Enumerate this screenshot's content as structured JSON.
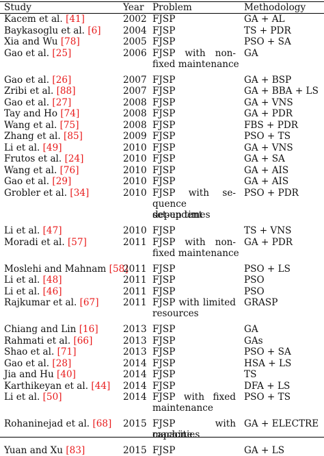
{
  "table": {
    "headers": {
      "study": "Study",
      "year": "Year",
      "problem": "Problem",
      "methodology": "Methodology"
    },
    "rows": [
      {
        "study": "Kacem et al. ",
        "ref": "[41]",
        "year": "2002",
        "problem": [
          "FJSP"
        ],
        "method": "GA + AL"
      },
      {
        "study": "Baykasoglu et al. ",
        "ref": "[6]",
        "year": "2004",
        "problem": [
          "FJSP"
        ],
        "method": "TS + PDR"
      },
      {
        "study": "Xia and Wu ",
        "ref": "[78]",
        "year": "2005",
        "problem": [
          "FJSP"
        ],
        "method": "PSO + SA"
      },
      {
        "study": "Gao et al. ",
        "ref": "[25]",
        "year": "2006",
        "problem": [
          "FJSP with non-",
          "fixed maintenance"
        ],
        "method": "GA"
      },
      {
        "study": "Gao et al. ",
        "ref": "[26]",
        "year": "2007",
        "problem": [
          "FJSP"
        ],
        "method": "GA + BSP"
      },
      {
        "study": "Zribi et al. ",
        "ref": "[88]",
        "year": "2007",
        "problem": [
          "FJSP"
        ],
        "method": "GA + BBA + LS"
      },
      {
        "study": "Gao et al. ",
        "ref": "[27]",
        "year": "2008",
        "problem": [
          "FJSP"
        ],
        "method": "GA + VNS"
      },
      {
        "study": "Tay and Ho ",
        "ref": "[74]",
        "year": "2008",
        "problem": [
          "FJSP"
        ],
        "method": "GA + PDR"
      },
      {
        "study": "Wang et al. ",
        "ref": "[75]",
        "year": "2008",
        "problem": [
          "FJSP"
        ],
        "method": "FBS + PDR"
      },
      {
        "study": "Zhang et al. ",
        "ref": "[85]",
        "year": "2009",
        "problem": [
          "FJSP"
        ],
        "method": "PSO + TS"
      },
      {
        "study": "Li et al. ",
        "ref": "[49]",
        "year": "2010",
        "problem": [
          "FJSP"
        ],
        "method": "GA + VNS"
      },
      {
        "study": "Frutos et al. ",
        "ref": "[24]",
        "year": "2010",
        "problem": [
          "FJSP"
        ],
        "method": "GA + SA"
      },
      {
        "study": "Wang et al. ",
        "ref": "[76]",
        "year": "2010",
        "problem": [
          "FJSP"
        ],
        "method": "GA + AIS"
      },
      {
        "study": "Gao et al. ",
        "ref": "[29]",
        "year": "2010",
        "problem": [
          "FJSP"
        ],
        "method": "GA + AIS"
      },
      {
        "study": "Grobler et al. ",
        "ref": "[34]",
        "year": "2010",
        "problem": [
          "FJSP with se-",
          "quence dependent",
          "set-up times"
        ],
        "method": "PSO + PDR"
      },
      {
        "study": "Li et al. ",
        "ref": "[47]",
        "year": "2010",
        "problem": [
          "FJSP"
        ],
        "method": "TS + VNS"
      },
      {
        "study": "Moradi et al. ",
        "ref": "[57]",
        "year": "2011",
        "problem": [
          "FJSP with non-",
          "fixed maintenance"
        ],
        "method": "GA + PDR"
      },
      {
        "study": "Moslehi and Mahnam ",
        "ref": "[58]",
        "year": "2011",
        "problem": [
          "FJSP"
        ],
        "method": "PSO + LS"
      },
      {
        "study": "Li et al. ",
        "ref": "[48]",
        "year": "2011",
        "problem": [
          "FJSP"
        ],
        "method": "PSO"
      },
      {
        "study": "Li et al. ",
        "ref": "[46]",
        "year": "2011",
        "problem": [
          "FJSP"
        ],
        "method": "PSO"
      },
      {
        "study": "Rajkumar et al. ",
        "ref": "[67]",
        "year": "2011",
        "problem": [
          "FJSP with limited",
          "resources"
        ],
        "method": "GRASP"
      },
      {
        "study": "Chiang and Lin ",
        "ref": "[16]",
        "year": "2013",
        "problem": [
          "FJSP"
        ],
        "method": "GA"
      },
      {
        "study": "Rahmati et al. ",
        "ref": "[66]",
        "year": "2013",
        "problem": [
          "FJSP"
        ],
        "method": "GAs"
      },
      {
        "study": "Shao et al. ",
        "ref": "[71]",
        "year": "2013",
        "problem": [
          "FJSP"
        ],
        "method": "PSO + SA"
      },
      {
        "study": "Gao et al. ",
        "ref": "[28]",
        "year": "2014",
        "problem": [
          "FJSP"
        ],
        "method": "HSA + LS"
      },
      {
        "study": "Jia and Hu ",
        "ref": "[40]",
        "year": "2014",
        "problem": [
          "FJSP"
        ],
        "method": "TS"
      },
      {
        "study": "Karthikeyan et al. ",
        "ref": "[44]",
        "year": "2014",
        "problem": [
          "FJSP"
        ],
        "method": "DFA + LS"
      },
      {
        "study": "Li et al. ",
        "ref": "[50]",
        "year": "2014",
        "problem": [
          "FJSP with fixed",
          "maintenance"
        ],
        "method": "PSO + TS"
      },
      {
        "study": "Rohaninejad et al. ",
        "ref": "[68]",
        "year": "2015",
        "problem": [
          "FJSP with machine",
          "capacities"
        ],
        "method": "GA + ELECTRE"
      },
      {
        "study": "Yuan and Xu ",
        "ref": "[83]",
        "year": "2015",
        "problem": [
          "FJSP"
        ],
        "method": "GA + LS"
      }
    ]
  }
}
